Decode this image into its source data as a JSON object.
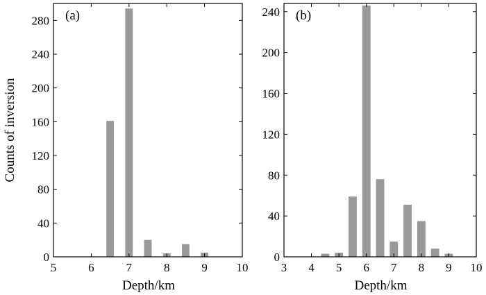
{
  "chart_data": [
    {
      "type": "bar",
      "panel_label": "(a)",
      "xlabel": "Depth/km",
      "ylabel": "Counts of inversion",
      "xlim": [
        5,
        10
      ],
      "ylim": [
        0,
        300
      ],
      "xticks": [
        5,
        6,
        7,
        8,
        9,
        10
      ],
      "yticks": [
        0,
        40,
        80,
        120,
        160,
        200,
        240,
        280
      ],
      "bar_width": 0.2,
      "bar_color": "#999999",
      "x": [
        6.5,
        7.0,
        7.5,
        8.0,
        8.5,
        9.0
      ],
      "values": [
        161,
        294,
        20,
        4,
        15,
        5
      ]
    },
    {
      "type": "bar",
      "panel_label": "(b)",
      "xlabel": "Depth/km",
      "ylabel": "",
      "xlim": [
        3,
        10
      ],
      "ylim": [
        0,
        248
      ],
      "xticks": [
        3,
        4,
        5,
        6,
        7,
        8,
        9,
        10
      ],
      "yticks": [
        0,
        40,
        80,
        120,
        160,
        200,
        240
      ],
      "bar_width": 0.3,
      "bar_color": "#999999",
      "x": [
        4.5,
        5.0,
        5.5,
        6.0,
        6.5,
        7.0,
        7.5,
        8.0,
        8.5,
        9.0
      ],
      "values": [
        3,
        4,
        59,
        246,
        76,
        15,
        51,
        35,
        8,
        3
      ]
    }
  ]
}
